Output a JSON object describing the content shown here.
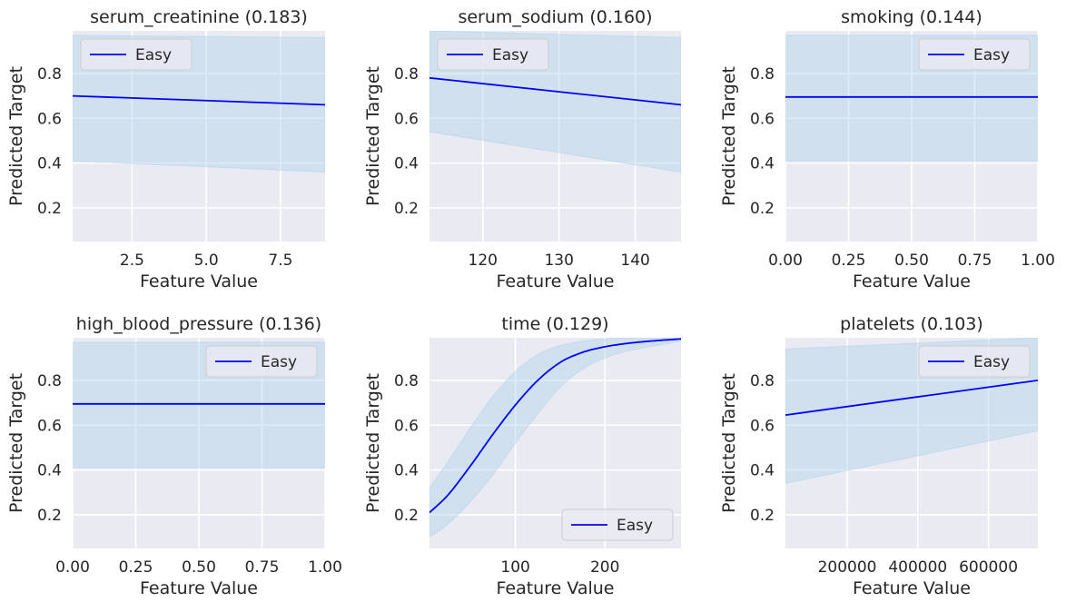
{
  "figure": {
    "title": "",
    "colors": {
      "background": "#EAEAF2",
      "grid": "#FFFFFF",
      "line": "#0000FF",
      "band": "#B3D4EC"
    }
  },
  "chart_data": [
    {
      "type": "line",
      "title": "serum_creatinine (0.183)",
      "xlabel": "Feature Value",
      "ylabel": "Predicted Target",
      "legend_label": "Easy",
      "legend_position": "upper-left",
      "xlim": [
        0.5,
        9.0
      ],
      "ylim": [
        0.05,
        0.99
      ],
      "xticks": [
        2.5,
        5.0,
        7.5
      ],
      "xtick_labels": [
        "2.5",
        "5.0",
        "7.5"
      ],
      "yticks": [
        0.2,
        0.4,
        0.6,
        0.8
      ],
      "ytick_labels": [
        "0.2",
        "0.4",
        "0.6",
        "0.8"
      ],
      "series": [
        {
          "name": "Easy",
          "x": [
            0.5,
            9.0
          ],
          "y": [
            0.7,
            0.66
          ]
        }
      ],
      "band": {
        "x": [
          0.5,
          9.0
        ],
        "upper": [
          0.97,
          0.96
        ],
        "lower": [
          0.41,
          0.36
        ]
      }
    },
    {
      "type": "line",
      "title": "serum_sodium (0.160)",
      "xlabel": "Feature Value",
      "ylabel": "Predicted Target",
      "legend_label": "Easy",
      "legend_position": "upper-left",
      "xlim": [
        113,
        146
      ],
      "ylim": [
        0.05,
        0.99
      ],
      "xticks": [
        120,
        130,
        140
      ],
      "xtick_labels": [
        "120",
        "130",
        "140"
      ],
      "yticks": [
        0.2,
        0.4,
        0.6,
        0.8
      ],
      "ytick_labels": [
        "0.2",
        "0.4",
        "0.6",
        "0.8"
      ],
      "series": [
        {
          "name": "Easy",
          "x": [
            113,
            146
          ],
          "y": [
            0.78,
            0.66
          ]
        }
      ],
      "band": {
        "x": [
          113,
          146
        ],
        "upper": [
          0.99,
          0.96
        ],
        "lower": [
          0.54,
          0.36
        ]
      }
    },
    {
      "type": "line",
      "title": "smoking (0.144)",
      "xlabel": "Feature Value",
      "ylabel": "Predicted Target",
      "legend_label": "Easy",
      "legend_position": "upper-right",
      "xlim": [
        0.0,
        1.0
      ],
      "ylim": [
        0.05,
        0.99
      ],
      "xticks": [
        0.0,
        0.25,
        0.5,
        0.75,
        1.0
      ],
      "xtick_labels": [
        "0.00",
        "0.25",
        "0.50",
        "0.75",
        "1.00"
      ],
      "yticks": [
        0.2,
        0.4,
        0.6,
        0.8
      ],
      "ytick_labels": [
        "0.2",
        "0.4",
        "0.6",
        "0.8"
      ],
      "series": [
        {
          "name": "Easy",
          "x": [
            0.0,
            1.0
          ],
          "y": [
            0.695,
            0.695
          ]
        }
      ],
      "band": {
        "x": [
          0.0,
          1.0
        ],
        "upper": [
          0.97,
          0.97
        ],
        "lower": [
          0.41,
          0.41
        ]
      }
    },
    {
      "type": "line",
      "title": "high_blood_pressure (0.136)",
      "xlabel": "Feature Value",
      "ylabel": "Predicted Target",
      "legend_label": "Easy",
      "legend_position": "upper-right",
      "xlim": [
        0.0,
        1.0
      ],
      "ylim": [
        0.05,
        0.99
      ],
      "xticks": [
        0.0,
        0.25,
        0.5,
        0.75,
        1.0
      ],
      "xtick_labels": [
        "0.00",
        "0.25",
        "0.50",
        "0.75",
        "1.00"
      ],
      "yticks": [
        0.2,
        0.4,
        0.6,
        0.8
      ],
      "ytick_labels": [
        "0.2",
        "0.4",
        "0.6",
        "0.8"
      ],
      "series": [
        {
          "name": "Easy",
          "x": [
            0.0,
            1.0
          ],
          "y": [
            0.695,
            0.695
          ]
        }
      ],
      "band": {
        "x": [
          0.0,
          1.0
        ],
        "upper": [
          0.97,
          0.97
        ],
        "lower": [
          0.41,
          0.41
        ]
      }
    },
    {
      "type": "line",
      "title": "time (0.129)",
      "xlabel": "Feature Value",
      "ylabel": "Predicted Target",
      "legend_label": "Easy",
      "legend_position": "lower-right",
      "xlim": [
        4,
        285
      ],
      "ylim": [
        0.05,
        0.99
      ],
      "xticks": [
        100,
        200
      ],
      "xtick_labels": [
        "100",
        "200"
      ],
      "yticks": [
        0.2,
        0.4,
        0.6,
        0.8
      ],
      "ytick_labels": [
        "0.2",
        "0.4",
        "0.6",
        "0.8"
      ],
      "series": [
        {
          "name": "Easy",
          "x": [
            4,
            25,
            50,
            75,
            100,
            125,
            150,
            175,
            200,
            225,
            250,
            285
          ],
          "y": [
            0.21,
            0.29,
            0.42,
            0.56,
            0.69,
            0.8,
            0.88,
            0.925,
            0.95,
            0.965,
            0.975,
            0.985
          ]
        }
      ],
      "band": {
        "x": [
          4,
          25,
          50,
          75,
          100,
          125,
          150,
          175,
          200,
          225,
          250,
          285
        ],
        "upper": [
          0.32,
          0.44,
          0.59,
          0.73,
          0.84,
          0.915,
          0.955,
          0.975,
          0.985,
          0.99,
          0.99,
          0.99
        ],
        "lower": [
          0.1,
          0.16,
          0.26,
          0.38,
          0.52,
          0.65,
          0.77,
          0.85,
          0.9,
          0.93,
          0.95,
          0.975
        ]
      }
    },
    {
      "type": "line",
      "title": "platelets (0.103)",
      "xlabel": "Feature Value",
      "ylabel": "Predicted Target",
      "legend_label": "Easy",
      "legend_position": "upper-right",
      "xlim": [
        25000,
        740000
      ],
      "ylim": [
        0.05,
        0.99
      ],
      "xticks": [
        200000,
        400000,
        600000
      ],
      "xtick_labels": [
        "200000",
        "400000",
        "600000"
      ],
      "yticks": [
        0.2,
        0.4,
        0.6,
        0.8
      ],
      "ytick_labels": [
        "0.2",
        "0.4",
        "0.6",
        "0.8"
      ],
      "series": [
        {
          "name": "Easy",
          "x": [
            25000,
            740000
          ],
          "y": [
            0.645,
            0.8
          ]
        }
      ],
      "band": {
        "x": [
          25000,
          740000
        ],
        "upper": [
          0.94,
          0.99
        ],
        "lower": [
          0.34,
          0.575
        ]
      }
    }
  ]
}
